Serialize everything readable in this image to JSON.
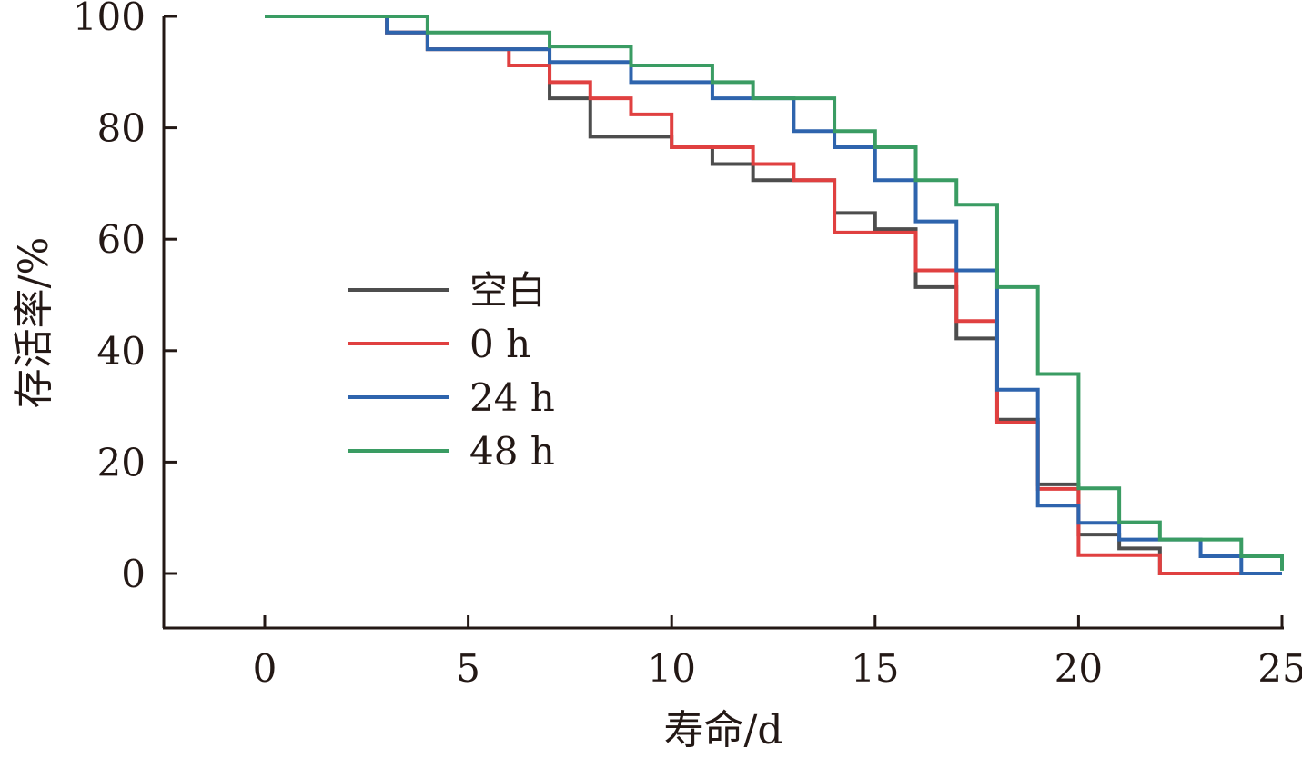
{
  "chart_data": {
    "type": "line",
    "step": true,
    "title": "",
    "xlabel": "寿命/d",
    "ylabel": "存活率/%",
    "xlim": [
      -2.5,
      25
    ],
    "ylim": [
      -10,
      100
    ],
    "xticks": [
      0,
      5,
      10,
      15,
      20,
      25
    ],
    "yticks": [
      0,
      20,
      40,
      60,
      80,
      100
    ],
    "grid": false,
    "legend_position": "left-middle",
    "series": [
      {
        "name": "空白",
        "color": "#4d4d4d",
        "x": [
          0,
          3,
          4,
          7,
          8,
          10,
          11,
          12,
          13,
          14,
          15,
          16,
          17,
          18,
          19,
          20,
          21,
          22,
          24
        ],
        "y": [
          100,
          97.1,
          94.1,
          85.3,
          78.4,
          76.5,
          73.5,
          70.6,
          70.6,
          64.7,
          61.8,
          51.4,
          42.2,
          27.6,
          16.0,
          7.0,
          4.5,
          0,
          0
        ]
      },
      {
        "name": "0 h",
        "color": "#e04040",
        "x": [
          0,
          3,
          4,
          6,
          7,
          8,
          9,
          10,
          12,
          13,
          14,
          16,
          17,
          18,
          19,
          20,
          22,
          24
        ],
        "y": [
          100,
          97.1,
          94.1,
          91.2,
          88.2,
          85.3,
          82.4,
          76.5,
          73.5,
          70.6,
          61.2,
          54.4,
          45.3,
          27.1,
          15.2,
          3.3,
          0,
          0
        ]
      },
      {
        "name": "24 h",
        "color": "#2e64ad",
        "x": [
          0,
          3,
          4,
          7,
          9,
          11,
          13,
          14,
          15,
          16,
          17,
          18,
          19,
          20,
          21,
          23,
          24,
          25
        ],
        "y": [
          100,
          97.1,
          94.1,
          91.8,
          88.2,
          85.3,
          79.4,
          76.5,
          70.6,
          63.2,
          54.4,
          33.0,
          12.2,
          9.1,
          6.1,
          3.1,
          0,
          0
        ]
      },
      {
        "name": "48 h",
        "color": "#3a9c63",
        "x": [
          0,
          4,
          7,
          9,
          11,
          12,
          14,
          15,
          16,
          17,
          18,
          19,
          20,
          21,
          22,
          24,
          25
        ],
        "y": [
          100,
          97.1,
          94.6,
          91.2,
          88.2,
          85.3,
          79.4,
          76.5,
          70.6,
          66.2,
          51.4,
          35.8,
          15.3,
          9.2,
          6.1,
          3.1,
          0.5
        ]
      }
    ]
  }
}
